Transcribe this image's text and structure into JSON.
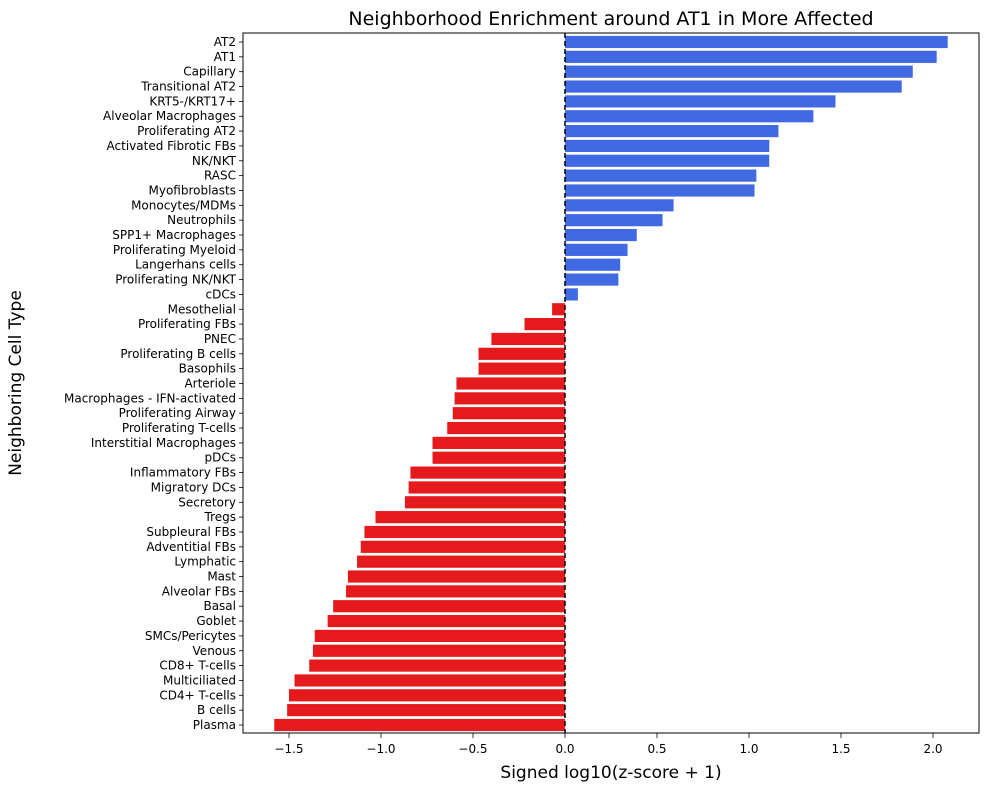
{
  "chart_data": {
    "type": "bar",
    "orientation": "horizontal",
    "title": "Neighborhood Enrichment around AT1 in More Affected",
    "xlabel": "Signed log10(z-score + 1)",
    "ylabel": "Neighboring Cell Type",
    "xlim": [
      -1.75,
      2.25
    ],
    "xticks": [
      -1.5,
      -1.0,
      -0.5,
      0.0,
      0.5,
      1.0,
      1.5,
      2.0
    ],
    "xtick_labels": [
      "−1.5",
      "−1.0",
      "−0.5",
      "0.0",
      "0.5",
      "1.0",
      "1.5",
      "2.0"
    ],
    "reference_line": {
      "x": 0,
      "style": "dashed",
      "color": "#000000"
    },
    "colors": {
      "positive": "#4169e1",
      "negative": "#e41a1c"
    },
    "grid": false,
    "categories": [
      "AT2",
      "AT1",
      "Capillary",
      "Transitional AT2",
      "KRT5-/KRT17+",
      "Alveolar Macrophages",
      "Proliferating AT2",
      "Activated Fibrotic FBs",
      "NK/NKT",
      "RASC",
      "Myofibroblasts",
      "Monocytes/MDMs",
      "Neutrophils",
      "SPP1+ Macrophages",
      "Proliferating Myeloid",
      "Langerhans cells",
      "Proliferating NK/NKT",
      "cDCs",
      "Mesothelial",
      "Proliferating FBs",
      "PNEC",
      "Proliferating B cells",
      "Basophils",
      "Arteriole",
      "Macrophages - IFN-activated",
      "Proliferating Airway",
      "Proliferating T-cells",
      "Interstitial Macrophages",
      "pDCs",
      "Inflammatory FBs",
      "Migratory DCs",
      "Secretory",
      "Tregs",
      "Subpleural FBs",
      "Adventitial FBs",
      "Lymphatic",
      "Mast",
      "Alveolar FBs",
      "Basal",
      "Goblet",
      "SMCs/Pericytes",
      "Venous",
      "CD8+ T-cells",
      "Multiciliated",
      "CD4+ T-cells",
      "B cells",
      "Plasma"
    ],
    "values": [
      2.08,
      2.02,
      1.89,
      1.83,
      1.47,
      1.35,
      1.16,
      1.11,
      1.11,
      1.04,
      1.03,
      0.59,
      0.53,
      0.39,
      0.34,
      0.3,
      0.29,
      0.07,
      -0.07,
      -0.22,
      -0.4,
      -0.47,
      -0.47,
      -0.59,
      -0.6,
      -0.61,
      -0.64,
      -0.72,
      -0.72,
      -0.84,
      -0.85,
      -0.87,
      -1.03,
      -1.09,
      -1.11,
      -1.13,
      -1.18,
      -1.19,
      -1.26,
      -1.29,
      -1.36,
      -1.37,
      -1.39,
      -1.47,
      -1.5,
      -1.51,
      -1.58
    ]
  }
}
